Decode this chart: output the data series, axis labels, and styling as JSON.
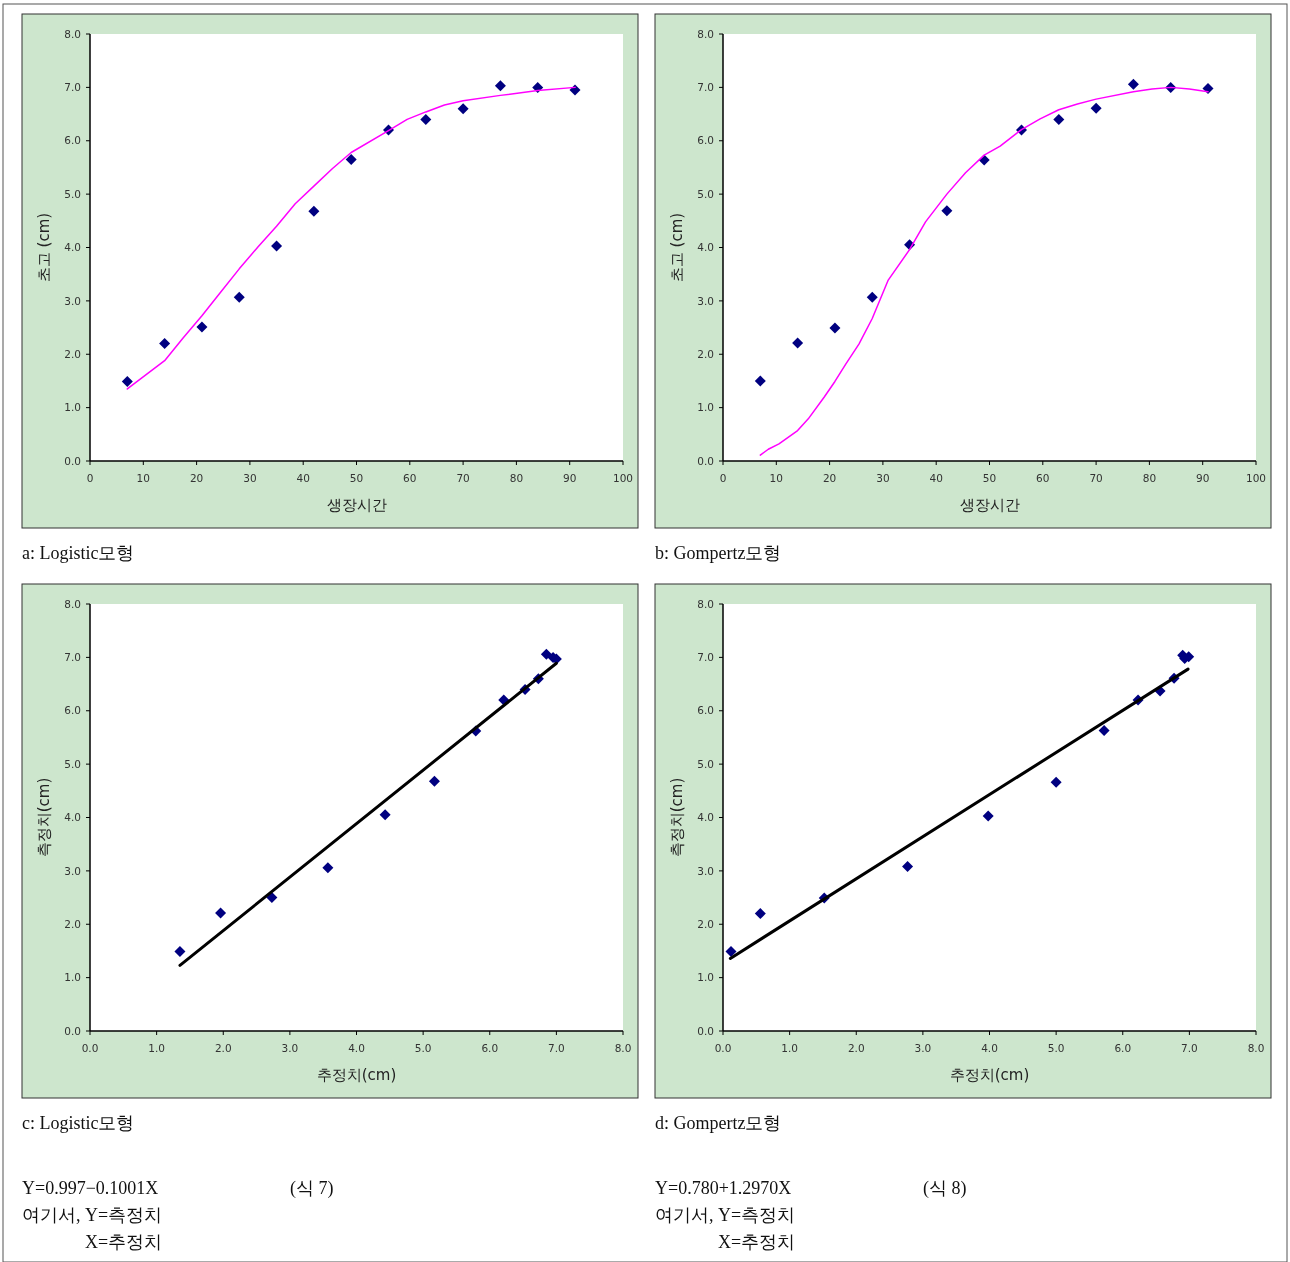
{
  "chart_data": [
    {
      "type": "scatter",
      "title": "a: Logistic모형",
      "xlabel": "생장시간",
      "ylabel": "초고 (cm)",
      "xlim": [
        0,
        100
      ],
      "ylim": [
        0,
        8
      ],
      "xticks": [
        0,
        10,
        20,
        30,
        40,
        50,
        60,
        70,
        80,
        90,
        100
      ],
      "yticks": [
        {
          "value": 0,
          "label": "0.0"
        },
        {
          "value": 1,
          "label": "1.0"
        },
        {
          "value": 2,
          "label": "2.0"
        },
        {
          "value": 3,
          "label": "3.0"
        },
        {
          "value": 4,
          "label": "4.0"
        },
        {
          "value": 5,
          "label": "5.0"
        },
        {
          "value": 6,
          "label": "6.0"
        },
        {
          "value": 7,
          "label": "7.0"
        },
        {
          "value": 8,
          "label": "8.0"
        }
      ],
      "series": [
        {
          "marker": "diamond",
          "color": "#000080",
          "x": [
            7,
            14,
            21,
            28,
            35,
            42,
            49,
            56,
            63,
            70,
            77,
            84,
            91
          ],
          "values": [
            1.49,
            2.2,
            2.51,
            3.07,
            4.03,
            4.68,
            5.65,
            6.2,
            6.4,
            6.6,
            7.03,
            7.0,
            6.95
          ]
        },
        {
          "type": "line",
          "marker": "none",
          "color": "#ff00ff",
          "x": [
            7,
            14,
            17.5,
            21,
            24.5,
            28,
            31.5,
            35,
            38.5,
            42,
            45.5,
            49,
            56,
            59.5,
            63,
            66.5,
            70,
            77,
            84,
            91
          ],
          "values": [
            1.35,
            1.88,
            2.31,
            2.72,
            3.16,
            3.6,
            4.01,
            4.4,
            4.82,
            5.15,
            5.48,
            5.78,
            6.19,
            6.4,
            6.54,
            6.67,
            6.75,
            6.85,
            6.94,
            7.0
          ]
        }
      ]
    },
    {
      "type": "scatter",
      "title": "b: Gompertz모형",
      "xlabel": "생장시간",
      "ylabel": "초고 (cm)",
      "xlim": [
        0,
        100
      ],
      "ylim": [
        0,
        8
      ],
      "xticks": [
        0,
        10,
        20,
        30,
        40,
        50,
        60,
        70,
        80,
        90,
        100
      ],
      "yticks": [
        {
          "value": 0,
          "label": "0.0"
        },
        {
          "value": 1,
          "label": "1.0"
        },
        {
          "value": 2,
          "label": "2.0"
        },
        {
          "value": 3,
          "label": "3.0"
        },
        {
          "value": 4,
          "label": "4.0"
        },
        {
          "value": 5,
          "label": "5.0"
        },
        {
          "value": 6,
          "label": "6.0"
        },
        {
          "value": 7,
          "label": "7.0"
        },
        {
          "value": 8,
          "label": "8.0"
        }
      ],
      "series": [
        {
          "marker": "diamond",
          "color": "#000080",
          "x": [
            7,
            14,
            21,
            28,
            35,
            42,
            49,
            56,
            63,
            70,
            77,
            84,
            91
          ],
          "values": [
            1.5,
            2.21,
            2.49,
            3.07,
            4.05,
            4.69,
            5.64,
            6.2,
            6.4,
            6.61,
            7.06,
            7.0,
            6.98
          ]
        },
        {
          "type": "line",
          "marker": "none",
          "color": "#ff00ff",
          "x": [
            7,
            8.5,
            10.5,
            14,
            16,
            19,
            21,
            23,
            25.5,
            28,
            31,
            35,
            38,
            42,
            45.5,
            49,
            52,
            56,
            59.5,
            63,
            66.5,
            70,
            77,
            80.5,
            84,
            87.5,
            91
          ],
          "values": [
            0.11,
            0.22,
            0.32,
            0.57,
            0.79,
            1.2,
            1.49,
            1.81,
            2.19,
            2.67,
            3.39,
            3.96,
            4.48,
            5.0,
            5.4,
            5.73,
            5.9,
            6.21,
            6.41,
            6.58,
            6.69,
            6.78,
            6.92,
            6.97,
            7.0,
            6.97,
            6.92
          ]
        }
      ]
    },
    {
      "type": "scatter",
      "title": "c: Logistic모형",
      "xlabel": "추정치(cm)",
      "ylabel": "측정치(cm)",
      "xlim": [
        0,
        8
      ],
      "ylim": [
        0,
        8
      ],
      "xticks": [
        {
          "value": 0,
          "label": "0.0"
        },
        {
          "value": 1,
          "label": "1.0"
        },
        {
          "value": 2,
          "label": "2.0"
        },
        {
          "value": 3,
          "label": "3.0"
        },
        {
          "value": 4,
          "label": "4.0"
        },
        {
          "value": 5,
          "label": "5.0"
        },
        {
          "value": 6,
          "label": "6.0"
        },
        {
          "value": 7,
          "label": "7.0"
        },
        {
          "value": 8,
          "label": "8.0"
        }
      ],
      "yticks": [
        {
          "value": 0,
          "label": "0.0"
        },
        {
          "value": 1,
          "label": "1.0"
        },
        {
          "value": 2,
          "label": "2.0"
        },
        {
          "value": 3,
          "label": "3.0"
        },
        {
          "value": 4,
          "label": "4.0"
        },
        {
          "value": 5,
          "label": "5.0"
        },
        {
          "value": 6,
          "label": "6.0"
        },
        {
          "value": 7,
          "label": "7.0"
        },
        {
          "value": 8,
          "label": "8.0"
        }
      ],
      "series": [
        {
          "marker": "diamond",
          "color": "#000080",
          "x": [
            1.35,
            1.96,
            2.73,
            3.57,
            4.43,
            5.17,
            5.79,
            6.21,
            6.53,
            6.73,
            6.85,
            6.95,
            7.0
          ],
          "values": [
            1.49,
            2.21,
            2.5,
            3.06,
            4.05,
            4.68,
            5.62,
            6.2,
            6.4,
            6.6,
            7.06,
            7.0,
            6.97
          ]
        },
        {
          "type": "line",
          "marker": "none",
          "color": "#000000",
          "x": [
            1.35,
            7.0
          ],
          "values": [
            1.23,
            6.89
          ]
        }
      ],
      "annotations": [
        "Y=0.997−0.1001X",
        "(식 7)",
        "여기서, Y=측정치",
        "X=추정치"
      ]
    },
    {
      "type": "scatter",
      "title": "d: Gompertz모형",
      "xlabel": "추정치(cm)",
      "ylabel": "측정치(cm)",
      "xlim": [
        0,
        8
      ],
      "ylim": [
        0,
        8
      ],
      "xticks": [
        {
          "value": 0,
          "label": "0.0"
        },
        {
          "value": 1,
          "label": "1.0"
        },
        {
          "value": 2,
          "label": "2.0"
        },
        {
          "value": 3,
          "label": "3.0"
        },
        {
          "value": 4,
          "label": "4.0"
        },
        {
          "value": 5,
          "label": "5.0"
        },
        {
          "value": 6,
          "label": "6.0"
        },
        {
          "value": 7,
          "label": "7.0"
        },
        {
          "value": 8,
          "label": "8.0"
        }
      ],
      "yticks": [
        {
          "value": 0,
          "label": "0.0"
        },
        {
          "value": 1,
          "label": "1.0"
        },
        {
          "value": 2,
          "label": "2.0"
        },
        {
          "value": 3,
          "label": "3.0"
        },
        {
          "value": 4,
          "label": "4.0"
        },
        {
          "value": 5,
          "label": "5.0"
        },
        {
          "value": 6,
          "label": "6.0"
        },
        {
          "value": 7,
          "label": "7.0"
        },
        {
          "value": 8,
          "label": "8.0"
        }
      ],
      "series": [
        {
          "marker": "diamond",
          "color": "#000080",
          "x": [
            0.12,
            0.56,
            1.52,
            2.77,
            3.98,
            5.0,
            5.72,
            6.23,
            6.56,
            6.77,
            6.9,
            6.93,
            6.99
          ],
          "values": [
            1.49,
            2.2,
            2.49,
            3.08,
            4.03,
            4.66,
            5.63,
            6.2,
            6.37,
            6.61,
            7.04,
            6.98,
            7.01
          ]
        },
        {
          "type": "line",
          "marker": "none",
          "color": "#000000",
          "x": [
            0.11,
            6.98
          ],
          "values": [
            1.36,
            6.78
          ]
        }
      ],
      "annotations": [
        "Y=0.780+1.2970X",
        "(식 8)",
        "여기서, Y=측정치",
        "X=추정치"
      ]
    }
  ]
}
